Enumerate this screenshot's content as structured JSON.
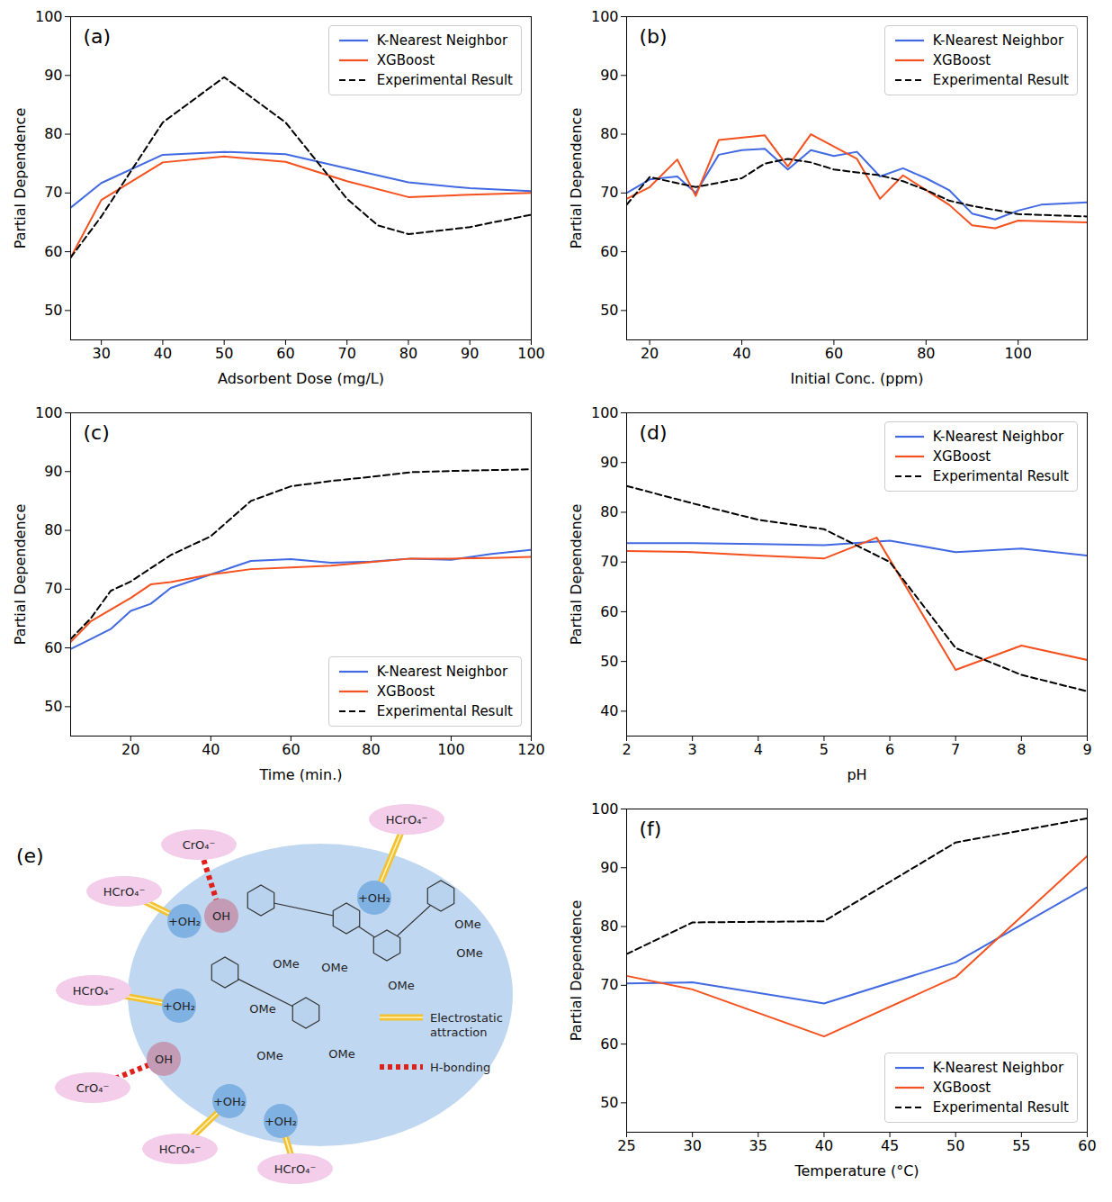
{
  "chart_data": [
    {
      "type": "line",
      "title": "(a)",
      "xlabel": "Adsorbent Dose (mg/L)",
      "ylabel": "Partial Dependence",
      "xlim": [
        25,
        100
      ],
      "xticks": [
        30,
        40,
        50,
        60,
        70,
        80,
        90,
        100
      ],
      "ylim": [
        45,
        100
      ],
      "yticks": [
        50,
        60,
        70,
        80,
        90,
        100
      ],
      "grid": false,
      "legend": "top-right",
      "series": [
        {
          "name": "K-Nearest Neighbor",
          "color": "#4169e1",
          "line_style": "solid",
          "x": [
            25,
            30,
            40,
            50,
            60,
            70,
            80,
            90,
            100
          ],
          "values": [
            67.5,
            71.7,
            76.5,
            77.0,
            76.6,
            74.2,
            71.8,
            70.8,
            70.3
          ]
        },
        {
          "name": "XGBoost",
          "color": "#f4511e",
          "line_style": "solid",
          "x": [
            25,
            30,
            40,
            50,
            60,
            70,
            80,
            90,
            100
          ],
          "values": [
            59,
            68.8,
            75.2,
            76.2,
            75.3,
            72,
            69.3,
            69.7,
            70
          ]
        },
        {
          "name": "Experimental Result",
          "color": "#000000",
          "line_style": "dashed",
          "x": [
            25,
            30,
            40,
            50,
            60,
            70,
            75,
            80,
            90,
            100
          ],
          "values": [
            59,
            66,
            82,
            89.7,
            82,
            69,
            64.5,
            63,
            64.2,
            66.3
          ]
        }
      ]
    },
    {
      "type": "line",
      "title": "(b)",
      "xlabel": "Initial Conc. (ppm)",
      "ylabel": "Partial Dependence",
      "xlim": [
        15,
        115
      ],
      "xticks": [
        20,
        40,
        60,
        80,
        100
      ],
      "ylim": [
        45,
        100
      ],
      "yticks": [
        50,
        60,
        70,
        80,
        90,
        100
      ],
      "grid": false,
      "legend": "top-right",
      "series": [
        {
          "name": "K-Nearest Neighbor",
          "color": "#4169e1",
          "line_style": "solid",
          "x": [
            15,
            20,
            26,
            30,
            35,
            40,
            45,
            50,
            55,
            60,
            65,
            70,
            75,
            80,
            85,
            90,
            95,
            100,
            105,
            115
          ],
          "values": [
            70,
            72.3,
            72.8,
            70,
            76.5,
            77.3,
            77.5,
            74,
            77.3,
            76.3,
            77,
            72.8,
            74.2,
            72.5,
            70.5,
            66.5,
            65.5,
            67,
            68,
            68.4
          ]
        },
        {
          "name": "XGBoost",
          "color": "#f4511e",
          "line_style": "solid",
          "x": [
            15,
            20,
            26,
            30,
            35,
            45,
            50,
            55,
            65,
            70,
            75,
            80,
            85,
            90,
            95,
            100,
            115
          ],
          "values": [
            69,
            71,
            75.7,
            69.5,
            79,
            79.8,
            74.5,
            80,
            75.8,
            69,
            73,
            70.5,
            68,
            64.5,
            64,
            65.3,
            65
          ]
        },
        {
          "name": "Experimental Result",
          "color": "#000000",
          "line_style": "dashed",
          "x": [
            15,
            20,
            30,
            40,
            45,
            50,
            55,
            60,
            65,
            70,
            75,
            80,
            85,
            90,
            100,
            115
          ],
          "values": [
            68,
            72.7,
            71,
            72.5,
            75,
            75.8,
            75.2,
            74,
            73.5,
            73,
            72,
            70.5,
            68.7,
            67.8,
            66.4,
            66
          ]
        }
      ]
    },
    {
      "type": "line",
      "title": "(c)",
      "xlabel": "Time (min.)",
      "ylabel": "Partial Dependence",
      "xlim": [
        5,
        120
      ],
      "xticks": [
        20,
        40,
        60,
        80,
        100,
        120
      ],
      "ylim": [
        45,
        100
      ],
      "yticks": [
        50,
        60,
        70,
        80,
        90,
        100
      ],
      "grid": false,
      "legend": "bottom-right",
      "series": [
        {
          "name": "K-Nearest Neighbor",
          "color": "#4169e1",
          "line_style": "solid",
          "x": [
            5,
            10,
            15,
            20,
            25,
            30,
            40,
            50,
            60,
            70,
            80,
            90,
            100,
            110,
            120
          ],
          "values": [
            59.8,
            61.5,
            63.2,
            66.3,
            67.5,
            70.2,
            72.5,
            74.8,
            75.1,
            74.5,
            74.7,
            75.2,
            75.0,
            76,
            76.7
          ]
        },
        {
          "name": "XGBoost",
          "color": "#f4511e",
          "line_style": "solid",
          "x": [
            5,
            10,
            15,
            20,
            25,
            30,
            40,
            50,
            60,
            70,
            80,
            90,
            100,
            110,
            120
          ],
          "values": [
            61,
            64.5,
            66.5,
            68.5,
            70.8,
            71.2,
            72.5,
            73.4,
            73.7,
            74,
            74.6,
            75.2,
            75.2,
            75.3,
            75.5
          ]
        },
        {
          "name": "Experimental Result",
          "color": "#000000",
          "line_style": "dashed",
          "x": [
            5,
            10,
            15,
            20,
            30,
            40,
            50,
            60,
            70,
            80,
            90,
            100,
            120
          ],
          "values": [
            61.5,
            65,
            69.7,
            71.3,
            75.8,
            79,
            85,
            87.5,
            88.4,
            89.1,
            89.9,
            90.1,
            90.4
          ]
        }
      ]
    },
    {
      "type": "line",
      "title": "(d)",
      "xlabel": "pH",
      "ylabel": "Partial Dependence",
      "xlim": [
        2,
        9
      ],
      "xticks": [
        2,
        3,
        4,
        5,
        6,
        7,
        8,
        9
      ],
      "ylim": [
        35,
        100
      ],
      "yticks": [
        40,
        50,
        60,
        70,
        80,
        90,
        100
      ],
      "grid": false,
      "legend": "top-right",
      "series": [
        {
          "name": "K-Nearest Neighbor",
          "color": "#4169e1",
          "line_style": "solid",
          "x": [
            2,
            3,
            4,
            5,
            6,
            7,
            8,
            9
          ],
          "values": [
            73.8,
            73.8,
            73.6,
            73.4,
            74.3,
            72,
            72.7,
            71.3
          ]
        },
        {
          "name": "XGBoost",
          "color": "#f4511e",
          "line_style": "solid",
          "x": [
            2,
            3,
            4,
            5,
            5.8,
            7,
            8,
            9
          ],
          "values": [
            72.2,
            72,
            71.3,
            70.7,
            74.9,
            48.3,
            53.2,
            50.3
          ]
        },
        {
          "name": "Experimental Result",
          "color": "#000000",
          "line_style": "dashed",
          "x": [
            2,
            3,
            4,
            5,
            6,
            7,
            8,
            9
          ],
          "values": [
            85.3,
            81.8,
            78.5,
            76.6,
            70,
            52.7,
            47.3,
            44
          ]
        }
      ]
    },
    {
      "type": "line",
      "title": "(f)",
      "xlabel": "Temperature (°C)",
      "ylabel": "Partial Dependence",
      "xlim": [
        25,
        60
      ],
      "xticks": [
        25,
        30,
        35,
        40,
        45,
        50,
        55,
        60
      ],
      "ylim": [
        45,
        100
      ],
      "yticks": [
        50,
        60,
        70,
        80,
        90,
        100
      ],
      "grid": false,
      "legend": "bottom-right",
      "series": [
        {
          "name": "K-Nearest Neighbor",
          "color": "#4169e1",
          "line_style": "solid",
          "x": [
            25,
            30,
            40,
            50,
            60
          ],
          "values": [
            70.3,
            70.5,
            66.9,
            73.9,
            86.7
          ]
        },
        {
          "name": "XGBoost",
          "color": "#f4511e",
          "line_style": "solid",
          "x": [
            25,
            30,
            40,
            50,
            60
          ],
          "values": [
            71.6,
            69.3,
            61.3,
            71.4,
            92
          ]
        },
        {
          "name": "Experimental Result",
          "color": "#000000",
          "line_style": "dashed",
          "x": [
            25,
            30,
            40,
            50,
            60
          ],
          "values": [
            75.3,
            80.7,
            80.9,
            94.3,
            98.4
          ]
        }
      ]
    }
  ],
  "diagram": {
    "title": "(e)",
    "bonds": [
      {
        "name": "Electrostatic attraction",
        "color": "#f2c230",
        "line_style": "double"
      },
      {
        "name": "H-bonding",
        "color": "#e0201b",
        "line_style": "dotted"
      }
    ],
    "ions": [
      {
        "label": "CrO₄⁻",
        "site": "OH",
        "bond": "H-bonding"
      },
      {
        "label": "HCrO₄⁻",
        "site": "+OH₂",
        "bond": "Electrostatic attraction"
      },
      {
        "label": "HCrO₄⁻",
        "site": "+OH₂",
        "bond": "Electrostatic attraction"
      },
      {
        "label": "HCrO₄⁻",
        "site": "+OH₂",
        "bond": "Electrostatic attraction"
      },
      {
        "label": "CrO₄⁻",
        "site": "OH",
        "bond": "H-bonding"
      },
      {
        "label": "HCrO₄⁻",
        "site": "+OH₂",
        "bond": "Electrostatic attraction"
      },
      {
        "label": "HCrO₄⁻",
        "site": "+OH₂",
        "bond": "Electrostatic attraction"
      }
    ],
    "groups": [
      "OMe",
      "OMe",
      "OMe",
      "OMe",
      "OMe",
      "OMe",
      "OMe",
      "OMe"
    ]
  }
}
